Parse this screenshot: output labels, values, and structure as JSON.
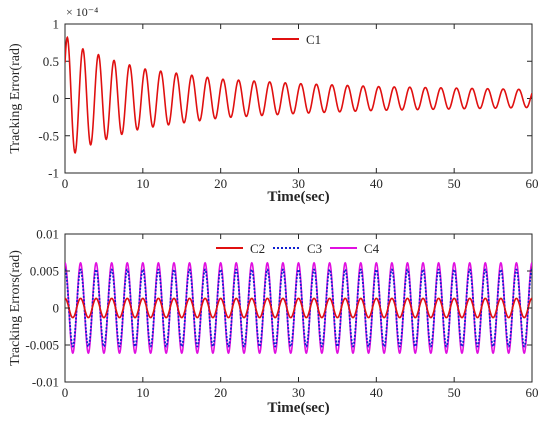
{
  "chart_data": [
    {
      "type": "line",
      "xlabel": "Time(sec)",
      "ylabel": "Tracking Error(rad)",
      "exponent_label": "× 10⁻⁴",
      "xlim": [
        0,
        60
      ],
      "ylim": [
        -1,
        1
      ],
      "xticks": [
        "0",
        "10",
        "20",
        "30",
        "40",
        "50",
        "60"
      ],
      "yticks": [
        "-1",
        "-0.5",
        "0",
        "0.5",
        "1"
      ],
      "legend_position": "top-center",
      "grid": false,
      "series": [
        {
          "name": "C1",
          "color": "#e01010",
          "description": "decaying oscillation, period about 2 s",
          "peaks": [
            {
              "x": 0.3,
              "y": 0.82
            },
            {
              "x": 1.0,
              "y": -0.75
            },
            {
              "x": 2.0,
              "y": 0.68
            },
            {
              "x": 3.0,
              "y": -0.63
            },
            {
              "x": 4.0,
              "y": 0.6
            },
            {
              "x": 6.0,
              "y": 0.52
            },
            {
              "x": 10.0,
              "y": 0.4
            },
            {
              "x": 20.0,
              "y": 0.26
            },
            {
              "x": 30.0,
              "y": 0.2
            },
            {
              "x": 40.0,
              "y": 0.16
            },
            {
              "x": 50.0,
              "y": 0.14
            },
            {
              "x": 60.0,
              "y": 0.12
            }
          ]
        }
      ]
    },
    {
      "type": "line",
      "xlabel": "Time(sec)",
      "ylabel": "Tracking Errors(rad)",
      "xlim": [
        0,
        60
      ],
      "ylim": [
        -0.01,
        0.01
      ],
      "xticks": [
        "0",
        "10",
        "20",
        "30",
        "40",
        "50",
        "60"
      ],
      "yticks": [
        "-0.01",
        "-0.005",
        "0",
        "0.005",
        "0.01"
      ],
      "legend_position": "top-center",
      "grid": false,
      "series": [
        {
          "name": "C2",
          "color": "#e01010",
          "style": "solid",
          "amplitude": 0.0013,
          "period": 2.0
        },
        {
          "name": "C3",
          "color": "#1020d0",
          "style": "dotted",
          "amplitude": 0.0052,
          "period": 2.0
        },
        {
          "name": "C4",
          "color": "#e010e0",
          "style": "solid",
          "amplitude": 0.0061,
          "period": 2.0
        }
      ]
    }
  ]
}
